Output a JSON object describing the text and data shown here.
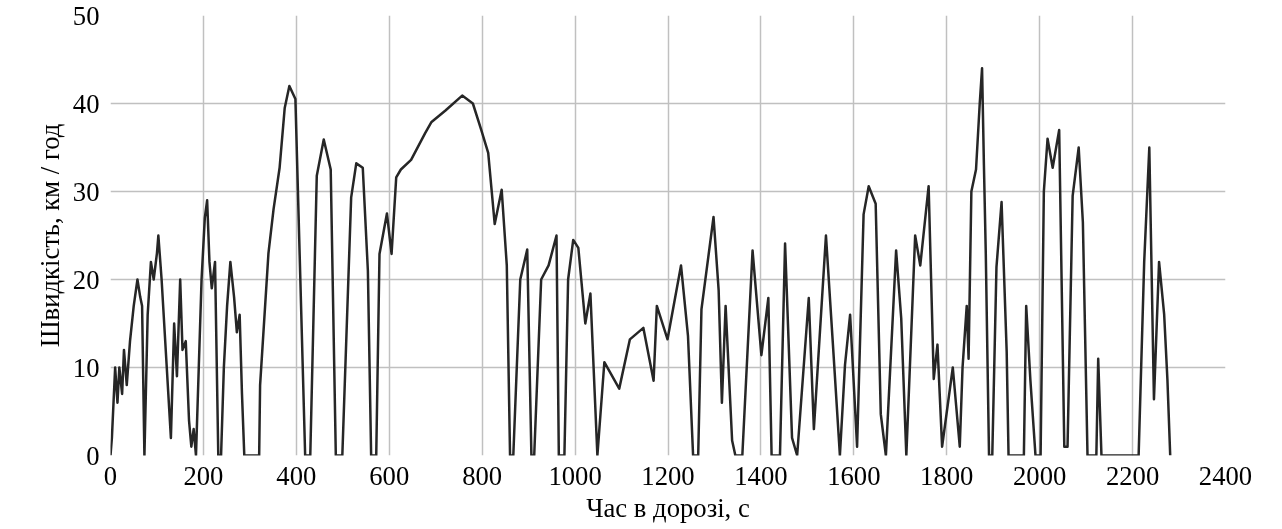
{
  "chart_data": {
    "type": "line",
    "xlabel": "Час в дорозі, с",
    "ylabel": "Швидкість, км / год",
    "xlim": [
      0,
      2400
    ],
    "ylim": [
      0,
      50
    ],
    "xticks": [
      0,
      200,
      400,
      600,
      800,
      1000,
      1200,
      1400,
      1600,
      1800,
      2000,
      2200,
      2400
    ],
    "yticks": [
      0,
      10,
      20,
      30,
      40,
      50
    ],
    "grid": true,
    "marker": "none",
    "line_style": "solid",
    "series": [
      {
        "color": "#262626",
        "x": [
          0,
          3,
          10,
          15,
          19,
          25,
          29,
          35,
          42,
          50,
          58,
          64,
          68,
          73,
          80,
          87,
          93,
          100,
          103,
          110,
          120,
          130,
          137,
          143,
          150,
          155,
          162,
          169,
          174,
          179,
          184,
          190,
          196,
          203,
          208,
          213,
          218,
          225,
          232,
          238,
          244,
          251,
          258,
          266,
          272,
          278,
          283,
          288,
          320,
          322,
          340,
          351,
          364,
          375,
          385,
          398,
          419,
          430,
          444,
          459,
          474,
          485,
          499,
          518,
          529,
          543,
          554,
          561,
          572,
          579,
          595,
          605,
          615,
          625,
          647,
          677,
          691,
          721,
          757,
          780,
          798,
          813,
          827,
          842,
          853,
          860,
          867,
          882,
          897,
          906,
          912,
          927,
          943,
          960,
          965,
          977,
          985,
          996,
          1007,
          1022,
          1033,
          1048,
          1063,
          1095,
          1118,
          1147,
          1169,
          1176,
          1199,
          1228,
          1243,
          1254,
          1265,
          1272,
          1298,
          1309,
          1316,
          1324,
          1338,
          1345,
          1360,
          1382,
          1401,
          1416,
          1423,
          1441,
          1452,
          1467,
          1478,
          1503,
          1514,
          1540,
          1555,
          1570,
          1581,
          1592,
          1607,
          1621,
          1632,
          1647,
          1658,
          1669,
          1691,
          1702,
          1713,
          1732,
          1743,
          1761,
          1772,
          1780,
          1790,
          1813,
          1828,
          1834,
          1843,
          1847,
          1853,
          1863,
          1871,
          1876,
          1880,
          1884,
          1891,
          1898,
          1907,
          1918,
          1929,
          1933,
          1966,
          1971,
          1980,
          1991,
          2002,
          2009,
          2017,
          2028,
          2042,
          2053,
          2060,
          2071,
          2084,
          2093,
          2103,
          2122,
          2126,
          2133,
          2213,
          2225,
          2236,
          2246,
          2257,
          2268,
          2275,
          2281
        ],
        "values": [
          0,
          2,
          10,
          6,
          10,
          7,
          12,
          8,
          13,
          17,
          20,
          18,
          17,
          0,
          16,
          22,
          20,
          23,
          25,
          20,
          11,
          2,
          15,
          9,
          20,
          12,
          13,
          4,
          1,
          3,
          0,
          10,
          20,
          27,
          29,
          22,
          19,
          22,
          0,
          0,
          10,
          17,
          22,
          18,
          14,
          16,
          7,
          0,
          0,
          8,
          23,
          28,
          32.7,
          39.5,
          42,
          40.5,
          0,
          0,
          31.8,
          35.9,
          32.5,
          0,
          0,
          29.3,
          33.2,
          32.7,
          21,
          0,
          0,
          22.9,
          27.5,
          22.9,
          31.6,
          32.5,
          33.6,
          36.6,
          37.9,
          39.2,
          40.9,
          40,
          37,
          34.4,
          26.3,
          30.2,
          21.6,
          0,
          0,
          20,
          23.4,
          0,
          0,
          20,
          21.6,
          25,
          0,
          0,
          20,
          24.5,
          23.6,
          15,
          18.4,
          0,
          10.6,
          7.6,
          13.2,
          14.5,
          8.5,
          17,
          13.2,
          21.6,
          13.6,
          0,
          0,
          16.6,
          27.1,
          18.8,
          6,
          17,
          1.7,
          0,
          0,
          23.3,
          11.4,
          17.9,
          0,
          0,
          24.1,
          2,
          0,
          17.9,
          3,
          25,
          12.6,
          0,
          10.3,
          16,
          1,
          27.4,
          30.6,
          28.6,
          4.7,
          0,
          23.3,
          15.6,
          0,
          25,
          21.6,
          30.6,
          8.7,
          12.6,
          1,
          10,
          1,
          10,
          17,
          11,
          30,
          32.5,
          40,
          44,
          33,
          23,
          0,
          0,
          21.4,
          28.8,
          11.8,
          0,
          0,
          17,
          8.6,
          0,
          0,
          30,
          36,
          32.7,
          37,
          1,
          1,
          29.5,
          35,
          26.5,
          0,
          0,
          11,
          0,
          0,
          22,
          35,
          6.4,
          22,
          16,
          8.6,
          0
        ]
      }
    ]
  }
}
